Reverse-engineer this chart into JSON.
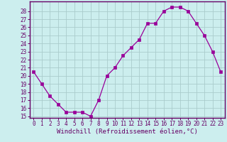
{
  "x": [
    0,
    1,
    2,
    3,
    4,
    5,
    6,
    7,
    8,
    9,
    10,
    11,
    12,
    13,
    14,
    15,
    16,
    17,
    18,
    19,
    20,
    21,
    22,
    23
  ],
  "y": [
    20.5,
    19,
    17.5,
    16.5,
    15.5,
    15.5,
    15.5,
    15,
    17,
    20,
    21,
    22.5,
    23.5,
    24.5,
    26.5,
    26.5,
    28,
    28.5,
    28.5,
    28,
    26.5,
    25,
    23,
    20.5
  ],
  "line_color": "#990099",
  "marker_color": "#990099",
  "bg_color": "#cceeee",
  "grid_color": "#aacccc",
  "xlabel": "Windchill (Refroidissement éolien,°C)",
  "ylim_min": 15,
  "ylim_max": 29,
  "xlim_min": -0.5,
  "xlim_max": 23.5,
  "yticks": [
    15,
    16,
    17,
    18,
    19,
    20,
    21,
    22,
    23,
    24,
    25,
    26,
    27,
    28
  ],
  "xticks": [
    0,
    1,
    2,
    3,
    4,
    5,
    6,
    7,
    8,
    9,
    10,
    11,
    12,
    13,
    14,
    15,
    16,
    17,
    18,
    19,
    20,
    21,
    22,
    23
  ],
  "tick_fontsize": 5.5,
  "xlabel_fontsize": 6.5,
  "axis_color": "#660066",
  "spine_color": "#660066"
}
